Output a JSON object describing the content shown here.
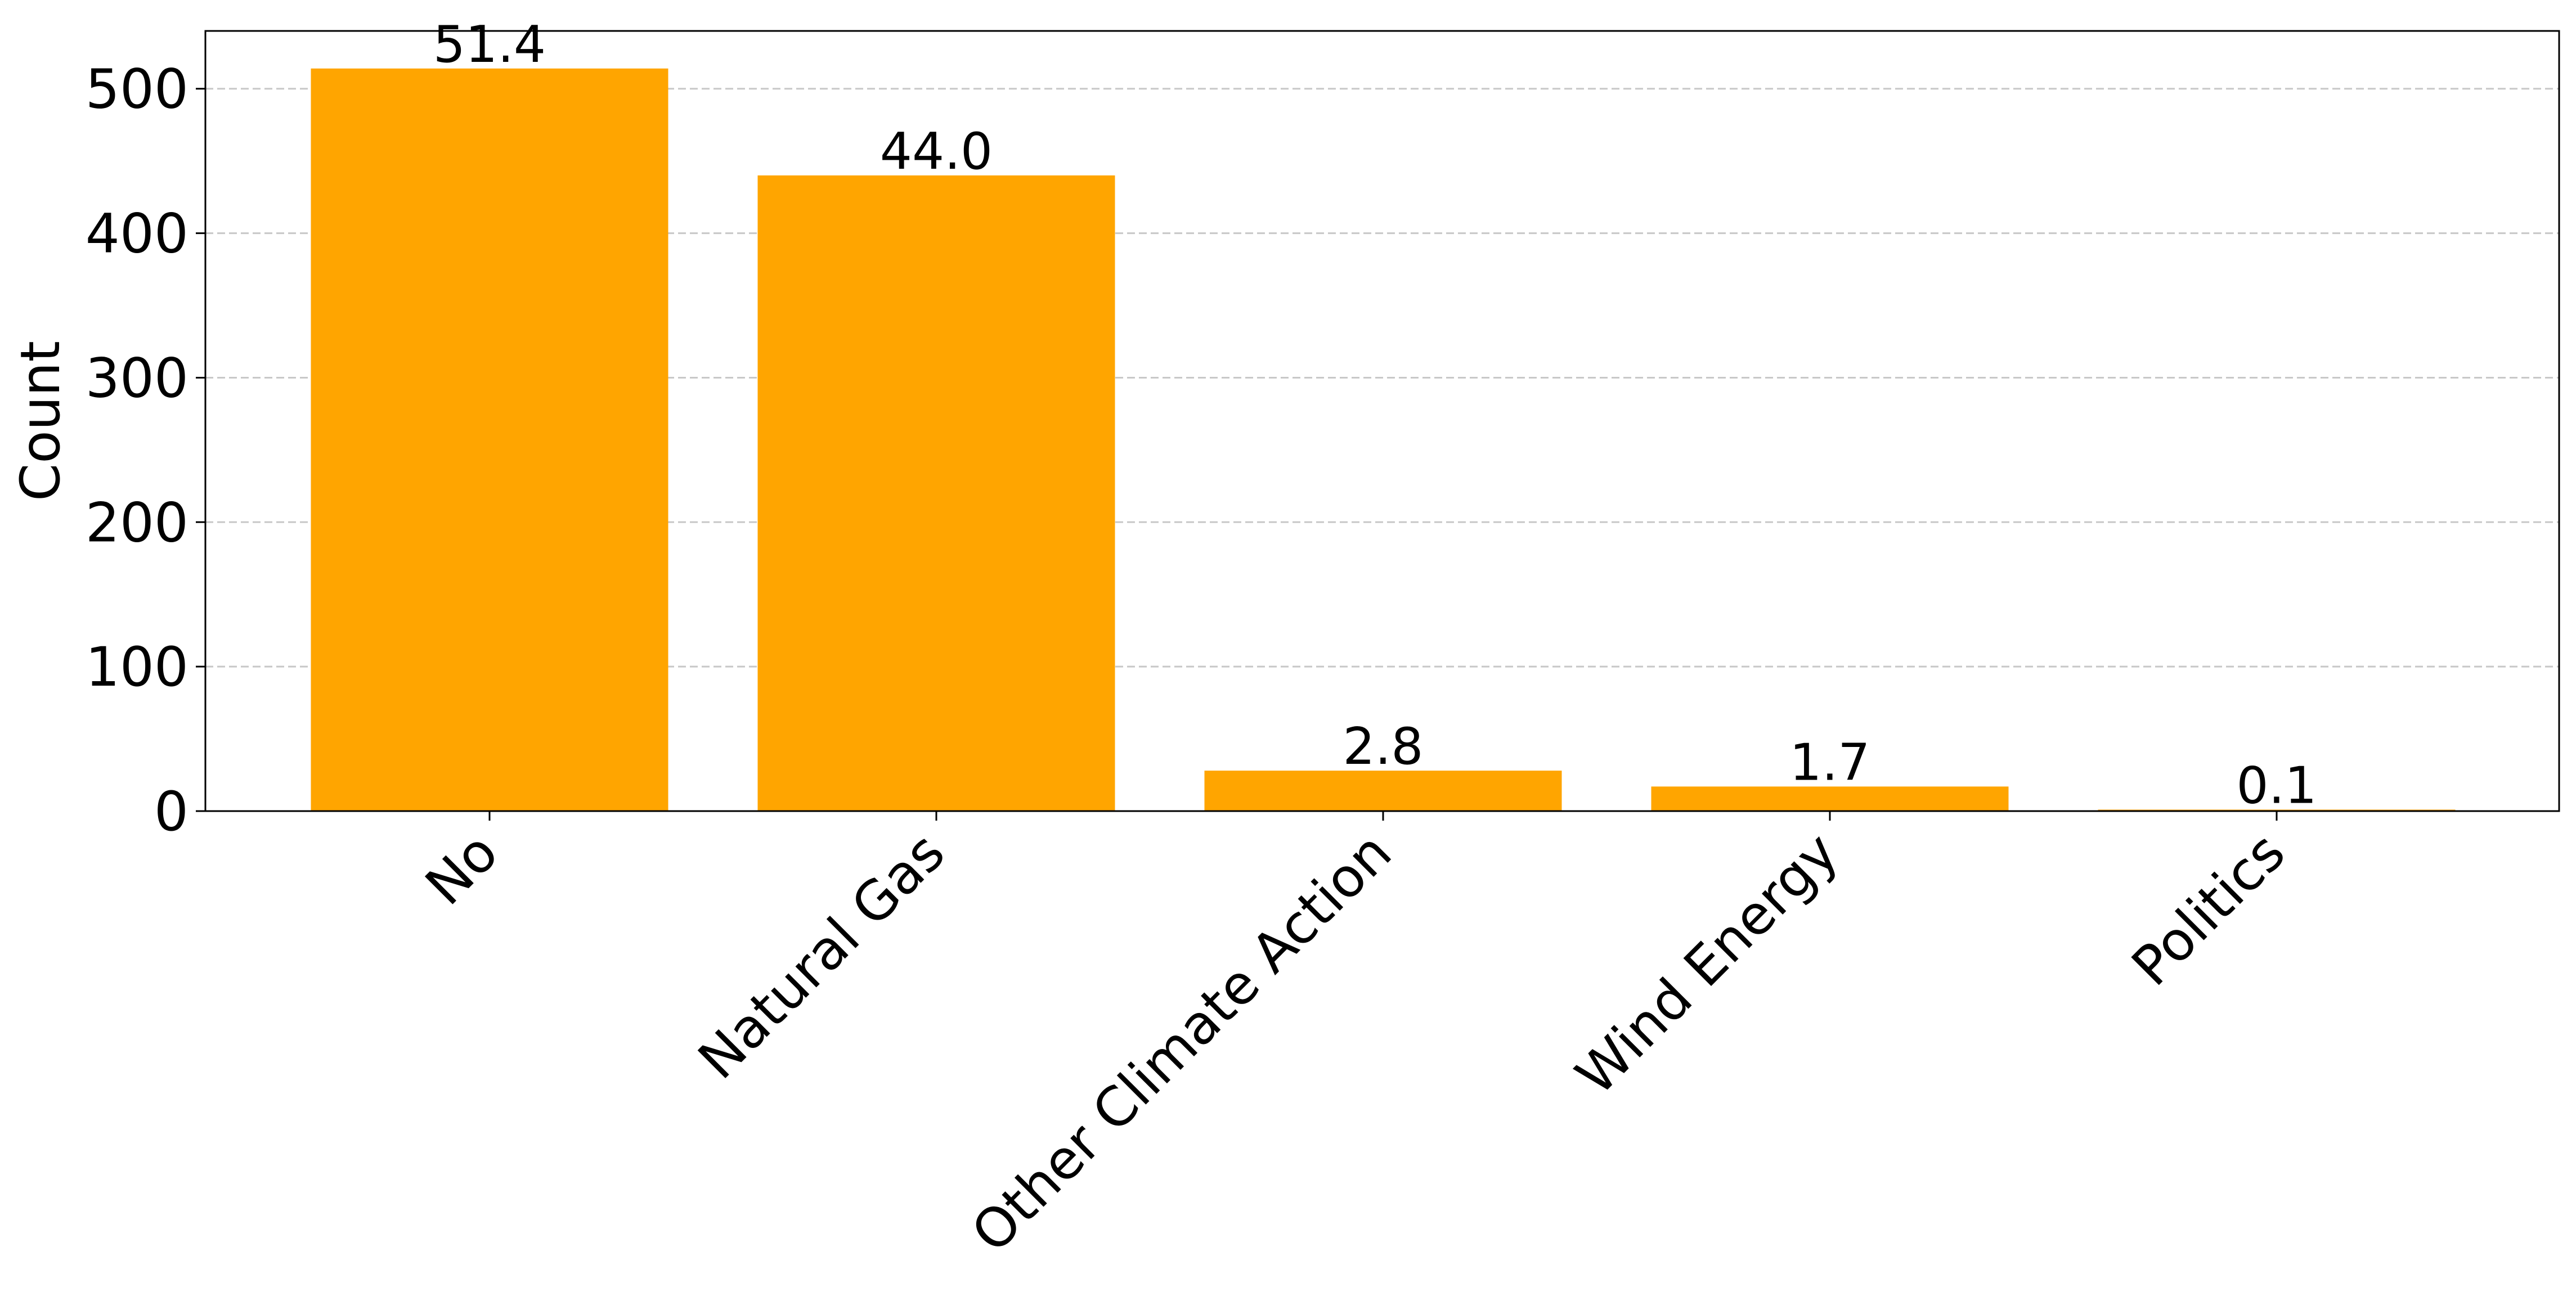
{
  "chart_data": {
    "type": "bar",
    "categories": [
      "No",
      "Natural Gas",
      "Other Climate Action",
      "Wind Energy",
      "Politics"
    ],
    "values": [
      514,
      440,
      28,
      17,
      1
    ],
    "data_labels": [
      "51.4",
      "44.0",
      "2.8",
      "1.7",
      "0.1"
    ],
    "title": "",
    "xlabel": "",
    "ylabel": "Count",
    "ylim": [
      0,
      540
    ],
    "yticks": [
      0,
      100,
      200,
      300,
      400,
      500
    ],
    "ytick_labels": [
      "0",
      "100",
      "200",
      "300",
      "400",
      "500"
    ],
    "grid": "y-dashed",
    "bar_color": "#FFA500",
    "grid_color": "#c8c8c8"
  }
}
